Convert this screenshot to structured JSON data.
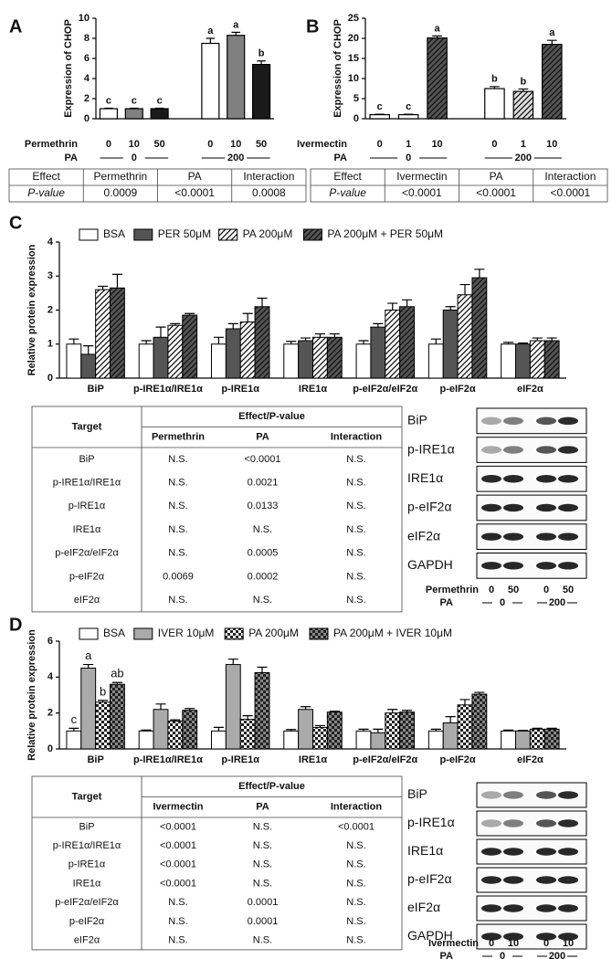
{
  "panel_labels": [
    "A",
    "B",
    "C",
    "D"
  ],
  "chart_data": [
    {
      "type": "bar",
      "y_label": "Expression of CHOP",
      "x_label": "Permethrin",
      "group_label": "PA",
      "groups": [
        "0",
        "200"
      ],
      "categories": [
        "0",
        "10",
        "50",
        "0",
        "10",
        "50"
      ],
      "values": [
        1,
        1,
        1,
        7.5,
        8.3,
        5.4
      ],
      "errors": [
        0.05,
        0.05,
        0.05,
        0.5,
        0.3,
        0.35
      ],
      "letters": [
        "c",
        "c",
        "c",
        "a",
        "a",
        "b"
      ],
      "colors": [
        "#ffffff",
        "#808080",
        "#1a1a1a",
        "#ffffff",
        "#808080",
        "#1a1a1a"
      ],
      "hatches": [
        "none",
        "none",
        "none",
        "none",
        "none",
        "none"
      ],
      "ylim": [
        0,
        10
      ],
      "yticks": [
        0,
        2,
        4,
        6,
        8,
        10
      ]
    },
    {
      "type": "bar",
      "y_label": "Expression of CHOP",
      "x_label": "Ivermectin",
      "group_label": "PA",
      "groups": [
        "0",
        "200"
      ],
      "categories": [
        "0",
        "1",
        "10",
        "0",
        "1",
        "10"
      ],
      "values": [
        1,
        1,
        20.1,
        7.5,
        6.8,
        18.5
      ],
      "errors": [
        0.1,
        0.1,
        0.5,
        0.5,
        0.6,
        1
      ],
      "letters": [
        "c",
        "c",
        "a",
        "b",
        "b",
        "a"
      ],
      "colors": [
        "#ffffff",
        "#ffffff",
        "#555555",
        "#ffffff",
        "#dddddd",
        "#555555"
      ],
      "hatches": [
        "none",
        "none",
        "diagonal",
        "none",
        "diagonal",
        "diagonal"
      ],
      "ylim": [
        0,
        25
      ],
      "yticks": [
        0,
        5,
        10,
        15,
        20,
        25
      ]
    },
    {
      "type": "grouped_bar",
      "y_label": "Relative protein expression",
      "categories": [
        "BiP",
        "p-IRE1α/IRE1α",
        "p-IRE1α",
        "IRE1α",
        "p-eIF2α/eIF2α",
        "p-eIF2α",
        "eIF2α"
      ],
      "series": [
        {
          "name": "BSA",
          "color": "#ffffff",
          "hatch": "none",
          "values": [
            1,
            1,
            1,
            1,
            1,
            1,
            1
          ],
          "errors": [
            0.15,
            0.1,
            0.2,
            0.08,
            0.1,
            0.15,
            0.05
          ]
        },
        {
          "name": "PER 50μM",
          "color": "#555555",
          "hatch": "none",
          "values": [
            0.7,
            1.2,
            1.45,
            1.1,
            1.5,
            2,
            1
          ],
          "errors": [
            0.25,
            0.3,
            0.15,
            0.08,
            0.1,
            0.1,
            0.03
          ]
        },
        {
          "name": "PA 200μM",
          "color": "#ffffff",
          "hatch": "diagonal",
          "values": [
            2.6,
            1.55,
            1.65,
            1.2,
            2,
            2.45,
            1.1
          ],
          "errors": [
            0.1,
            0.05,
            0.25,
            0.1,
            0.2,
            0.3,
            0.08
          ]
        },
        {
          "name": "PA 200μM + PER 50μM",
          "color": "#555555",
          "hatch": "diagonal",
          "values": [
            2.65,
            1.85,
            2.1,
            1.2,
            2.1,
            2.95,
            1.1
          ],
          "errors": [
            0.4,
            0.05,
            0.25,
            0.1,
            0.2,
            0.25,
            0.08
          ]
        }
      ],
      "ylim": [
        0,
        4
      ],
      "yticks": [
        0,
        1,
        2,
        3,
        4
      ]
    },
    {
      "type": "grouped_bar",
      "y_label": "Relative protein expression",
      "categories": [
        "BiP",
        "p-IRE1α/IRE1α",
        "p-IRE1α",
        "IRE1α",
        "p-eIF2α/eIF2α",
        "p-eIF2α",
        "eIF2α"
      ],
      "series": [
        {
          "name": "BSA",
          "color": "#ffffff",
          "hatch": "none",
          "values": [
            1,
            1,
            1,
            1,
            1,
            1,
            1
          ],
          "errors": [
            0.15,
            0.05,
            0.2,
            0.08,
            0.1,
            0.1,
            0.05
          ],
          "letters": [
            "c",
            null,
            null,
            null,
            null,
            null,
            null
          ]
        },
        {
          "name": "IVER 10μM",
          "color": "#aaaaaa",
          "hatch": "none",
          "values": [
            4.5,
            2.2,
            4.7,
            2.2,
            0.9,
            1.45,
            1
          ],
          "errors": [
            0.2,
            0.3,
            0.3,
            0.15,
            0.2,
            0.35,
            0.03
          ],
          "letters": [
            "a",
            null,
            null,
            null,
            null,
            null,
            null
          ]
        },
        {
          "name": "PA 200μM",
          "color": "#ffffff",
          "hatch": "checker",
          "values": [
            2.6,
            1.55,
            1.65,
            1.2,
            2,
            2.45,
            1.1
          ],
          "errors": [
            0.1,
            0.07,
            0.2,
            0.1,
            0.2,
            0.3,
            0.05
          ],
          "letters": [
            "b",
            null,
            null,
            null,
            null,
            null,
            null
          ]
        },
        {
          "name": "PA 200μM + IVER 10μM",
          "color": "#888888",
          "hatch": "checker",
          "values": [
            3.6,
            2.15,
            4.25,
            2.05,
            2.05,
            3.05,
            1.1
          ],
          "errors": [
            0.1,
            0.1,
            0.3,
            0.05,
            0.1,
            0.1,
            0.05
          ],
          "letters": [
            "ab",
            null,
            null,
            null,
            null,
            null,
            null
          ]
        }
      ],
      "ylim": [
        0,
        6
      ],
      "yticks": [
        0,
        2,
        4,
        6
      ]
    }
  ],
  "tables": [
    {
      "header": [
        "Effect",
        "Permethrin",
        "PA",
        "Interaction"
      ],
      "rows": [
        [
          "P-value",
          "0.0009",
          "<0.0001",
          "0.0008"
        ]
      ]
    },
    {
      "header": [
        "Effect",
        "Ivermectin",
        "PA",
        "Interaction"
      ],
      "rows": [
        [
          "P-value",
          "<0.0001",
          "<0.0001",
          "<0.0001"
        ]
      ]
    },
    {
      "header": [
        "Target",
        "Effect/P-value"
      ],
      "subheader": [
        "Permethrin",
        "PA",
        "Interaction"
      ],
      "rows": [
        [
          "BiP",
          "N.S.",
          "<0.0001",
          "N.S."
        ],
        [
          "p-IRE1α/IRE1α",
          "N.S.",
          "0.0021",
          "N.S."
        ],
        [
          "p-IRE1α",
          "N.S.",
          "0.0133",
          "N.S."
        ],
        [
          "IRE1α",
          "N.S.",
          "N.S.",
          "N.S."
        ],
        [
          "p-eIF2α/eIF2α",
          "N.S.",
          "0.0005",
          "N.S."
        ],
        [
          "p-eIF2α",
          "0.0069",
          "0.0002",
          "N.S."
        ],
        [
          "eIF2α",
          "N.S.",
          "N.S.",
          "N.S."
        ]
      ]
    },
    {
      "header": [
        "Target",
        "Effect/P-value"
      ],
      "subheader": [
        "Ivermectin",
        "PA",
        "Interaction"
      ],
      "rows": [
        [
          "BiP",
          "<0.0001",
          "N.S.",
          "<0.0001"
        ],
        [
          "p-IRE1α/IRE1α",
          "<0.0001",
          "N.S.",
          "N.S."
        ],
        [
          "p-IRE1α",
          "<0.0001",
          "N.S.",
          "N.S."
        ],
        [
          "IRE1α",
          "<0.0001",
          "N.S.",
          "N.S."
        ],
        [
          "p-eIF2α/eIF2α",
          "N.S.",
          "0.0001",
          "N.S."
        ],
        [
          "p-eIF2α",
          "N.S.",
          "0.0001",
          "N.S."
        ],
        [
          "eIF2α",
          "N.S.",
          "N.S.",
          "N.S."
        ]
      ]
    }
  ],
  "blots": [
    {
      "bands": [
        "BiP",
        "p-IRE1α",
        "IRE1α",
        "p-eIF2α",
        "eIF2α",
        "GAPDH"
      ],
      "treatment_label": "Permethrin",
      "treatment_values": [
        "0",
        "50",
        "0",
        "50"
      ],
      "pa_label": "PA",
      "pa_groups": [
        "0",
        "200"
      ]
    },
    {
      "bands": [
        "BiP",
        "p-IRE1α",
        "IRE1α",
        "p-eIF2α",
        "eIF2α",
        "GAPDH"
      ],
      "treatment_label": "Ivermectin",
      "treatment_values": [
        "0",
        "10",
        "0",
        "10"
      ],
      "pa_label": "PA",
      "pa_groups": [
        "0",
        "200"
      ]
    }
  ]
}
